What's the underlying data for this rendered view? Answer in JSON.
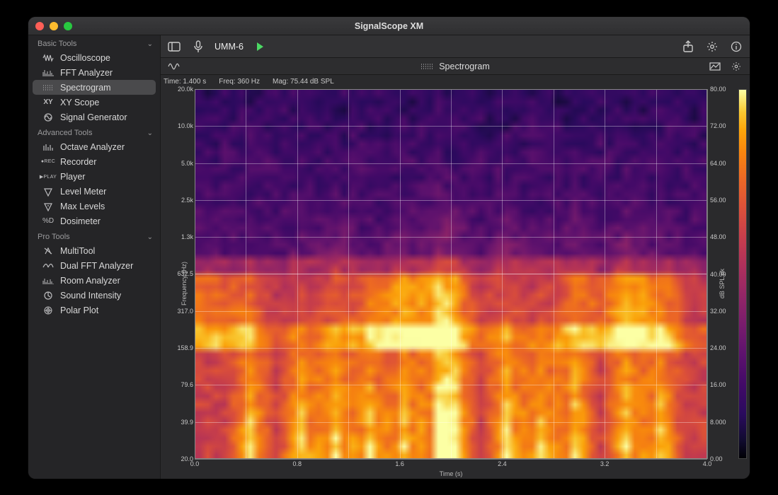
{
  "window": {
    "title": "SignalScope XM"
  },
  "sidebar": {
    "sections": [
      {
        "label": "Basic Tools",
        "items": [
          {
            "label": "Oscilloscope",
            "icon": "osc"
          },
          {
            "label": "FFT Analyzer",
            "icon": "fft"
          },
          {
            "label": "Spectrogram",
            "icon": "spectro",
            "selected": true
          },
          {
            "label": "XY Scope",
            "icon": "xy"
          },
          {
            "label": "Signal Generator",
            "icon": "siggen"
          }
        ]
      },
      {
        "label": "Advanced Tools",
        "items": [
          {
            "label": "Octave Analyzer",
            "icon": "octave"
          },
          {
            "label": "Recorder",
            "icon": "rec"
          },
          {
            "label": "Player",
            "icon": "play"
          },
          {
            "label": "Level Meter",
            "icon": "level"
          },
          {
            "label": "Max Levels",
            "icon": "maxlvl"
          },
          {
            "label": "Dosimeter",
            "icon": "dosi"
          }
        ]
      },
      {
        "label": "Pro Tools",
        "items": [
          {
            "label": "MultiTool",
            "icon": "multi"
          },
          {
            "label": "Dual FFT Analyzer",
            "icon": "dualfft"
          },
          {
            "label": "Room Analyzer",
            "icon": "room"
          },
          {
            "label": "Sound Intensity",
            "icon": "intensity"
          },
          {
            "label": "Polar Plot",
            "icon": "polar"
          }
        ]
      }
    ]
  },
  "toolbar": {
    "input_device": "UMM-6",
    "playing": true
  },
  "subtoolbar": {
    "title": "Spectrogram"
  },
  "readout": {
    "time": "Time: 1.400 s",
    "freq": "Freq: 360 Hz",
    "mag": "Mag: 75.44 dB SPL"
  },
  "chart": {
    "type": "spectrogram",
    "xlabel": "Time (s)",
    "ylabel": "Frequency (Hz)",
    "clabel": "dB SPL pk",
    "background_color": "#0d0d14",
    "grid_color": "rgba(255,255,255,0.35)",
    "grid_strong_pct": [
      15,
      50
    ],
    "x": {
      "min": 0.0,
      "max": 4.0,
      "ticks": [
        0.0,
        0.8,
        1.6,
        2.4,
        3.2,
        4.0
      ],
      "tick_labels": [
        "0.0",
        "0.8",
        "1.6",
        "2.4",
        "3.2",
        "4.0"
      ],
      "minor_subdiv": 2
    },
    "y": {
      "scale": "log",
      "min": 20.0,
      "max": 20000.0,
      "ticks": [
        20.0,
        39.9,
        79.6,
        158.9,
        317.0,
        632.5,
        1262.3,
        2500,
        5000,
        10000,
        20000
      ],
      "tick_labels": [
        "20.0",
        "39.9",
        "79.6",
        "158.9",
        "317.0",
        "632.5",
        "1.3k",
        "2.5k",
        "5.0k",
        "10.0k",
        "20.0k"
      ]
    },
    "c": {
      "min": 0.0,
      "max": 80.0,
      "ticks": [
        0.0,
        8.0,
        16.0,
        24.0,
        32.0,
        40.0,
        48.0,
        56.0,
        64.0,
        72.0,
        80.0
      ],
      "tick_labels": [
        "0.00",
        "8.000",
        "16.00",
        "24.00",
        "32.00",
        "40.00",
        "48.00",
        "56.00",
        "64.00",
        "72.00",
        "80.00"
      ]
    },
    "colormap": {
      "name": "inferno",
      "stops": [
        [
          0.0,
          "#000004"
        ],
        [
          0.05,
          "#110b30"
        ],
        [
          0.12,
          "#2a0b5e"
        ],
        [
          0.2,
          "#420a68"
        ],
        [
          0.28,
          "#5d126e"
        ],
        [
          0.36,
          "#781c6d"
        ],
        [
          0.44,
          "#932667"
        ],
        [
          0.52,
          "#ae305c"
        ],
        [
          0.6,
          "#c73e4c"
        ],
        [
          0.68,
          "#dd513a"
        ],
        [
          0.76,
          "#ed6925"
        ],
        [
          0.83,
          "#f8850f"
        ],
        [
          0.89,
          "#fca50a"
        ],
        [
          0.94,
          "#f9c932"
        ],
        [
          1.0,
          "#fcffa4"
        ]
      ]
    },
    "data": {
      "nx": 60,
      "ny": 44,
      "comment": "z is 0..1 into colormap; reconstructed approximation of spectrogram. Rows bottom→top (low freq → high), cols left→right (t=0→4s).",
      "hot_band_rows": [
        18,
        19,
        22,
        23
      ],
      "formant_rows": [
        26,
        27,
        30,
        31,
        34
      ],
      "event_cols": [
        6,
        12,
        16,
        20,
        24,
        28,
        30,
        36,
        40,
        44,
        50,
        54
      ],
      "base_low": 0.62,
      "base_mid": 0.46,
      "base_high": 0.24,
      "noise_amp": 0.07,
      "band_boost": 0.3,
      "event_boost": 0.34
    }
  }
}
